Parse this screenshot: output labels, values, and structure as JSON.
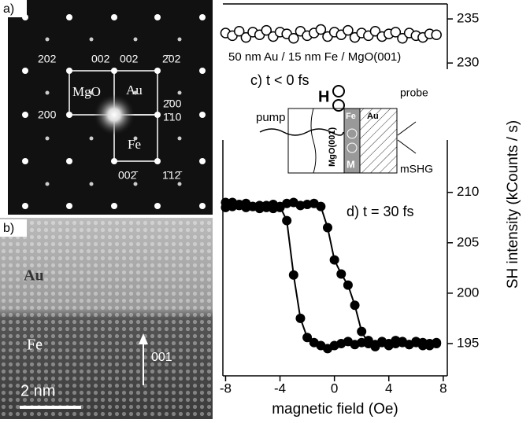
{
  "figure": {
    "diffraction": {
      "panel": "a)",
      "labels": [
        "202",
        "002",
        "002",
        "2̄02",
        "MgO",
        "Au",
        "2̄00",
        "1̄10",
        "200",
        "Fe",
        "002̄",
        "1̄12̄"
      ]
    },
    "tem": {
      "panel": "b)",
      "labels": [
        "Au",
        "Fe",
        "001",
        "2 nm"
      ]
    },
    "schematic": {
      "labels": [
        "H",
        "pump",
        "probe",
        "mSHG",
        "Fe",
        "Au",
        "MgO(001)",
        "M"
      ]
    }
  },
  "chart_data": [
    {
      "type": "scatter",
      "annotations": [
        "50 nm Au / 15 nm Fe / MgO(001)",
        "c) t < 0 fs"
      ],
      "x": [
        -8,
        -7.5,
        -7,
        -6.5,
        -6,
        -5.5,
        -5,
        -4.5,
        -4,
        -3.5,
        -3,
        -2.5,
        -2,
        -1.5,
        -1,
        -0.5,
        0,
        0.5,
        1,
        1.5,
        2,
        2.5,
        3,
        3.5,
        4,
        4.5,
        5,
        5.5,
        6,
        6.5,
        7,
        7.5
      ],
      "series": [
        {
          "color": "#000000",
          "marker": "open",
          "values": [
            233.4,
            233.1,
            233.6,
            232.9,
            233.5,
            233.2,
            233.7,
            233,
            233.5,
            233.3,
            232.8,
            233.6,
            233.1,
            233.4,
            233.8,
            233,
            233.5,
            233.2,
            233.7,
            232.9,
            233.4,
            233.1,
            233.6,
            233,
            233.3,
            233.5,
            232.8,
            233.4,
            233.1,
            232.9,
            233.3,
            233.2
          ]
        }
      ],
      "xlim": [
        -8.2,
        8.3
      ],
      "ylim": [
        229.3,
        236.7
      ],
      "yticks": [
        230,
        235
      ]
    },
    {
      "type": "line",
      "annotations": [
        "d) t = 30 fs"
      ],
      "xlabel": "magnetic field (Oe)",
      "ylabel": "SH intensity (kCounts / s)",
      "x": [
        -8,
        -7.5,
        -7,
        -6.5,
        -6,
        -5.5,
        -5,
        -4.5,
        -4,
        -3.5,
        -3,
        -2.5,
        -2,
        -1.5,
        -1,
        -0.5,
        0,
        0.5,
        1,
        1.5,
        2,
        2.5,
        3,
        3.5,
        4,
        4.5,
        5,
        5.5,
        6,
        6.5,
        7,
        7.5
      ],
      "series": [
        {
          "color": "#000000",
          "marker": "filled",
          "values": [
            209,
            208.6,
            208.8,
            208.5,
            208.6,
            208.7,
            208.5,
            208.4,
            208.6,
            207.2,
            201.8,
            197.5,
            195.6,
            195.1,
            194.8,
            194.5,
            194.8,
            195,
            195.2,
            194.9,
            195.1,
            195.3,
            194.9,
            195.2,
            195,
            195.3,
            195.1,
            194.9,
            195.2,
            195.1,
            194.8,
            195
          ]
        },
        {
          "color": "#000000",
          "marker": "filled",
          "values": [
            208.5,
            209,
            208.7,
            208.9,
            208.6,
            208.4,
            208.7,
            208.8,
            208.5,
            208.9,
            209,
            208.7,
            208.8,
            208.9,
            208.6,
            206.5,
            203.3,
            201.9,
            200.8,
            198.8,
            196.2,
            195,
            194.7,
            195.1,
            194.8,
            195,
            195.2,
            194.9,
            195.1,
            194.8,
            195,
            195.1
          ]
        }
      ],
      "xlim": [
        -8.2,
        8.3
      ],
      "ylim": [
        191.8,
        215.2
      ],
      "xticks": [
        -8,
        -4,
        0,
        4,
        8
      ],
      "yticks": [
        195,
        200,
        205,
        210
      ]
    }
  ]
}
